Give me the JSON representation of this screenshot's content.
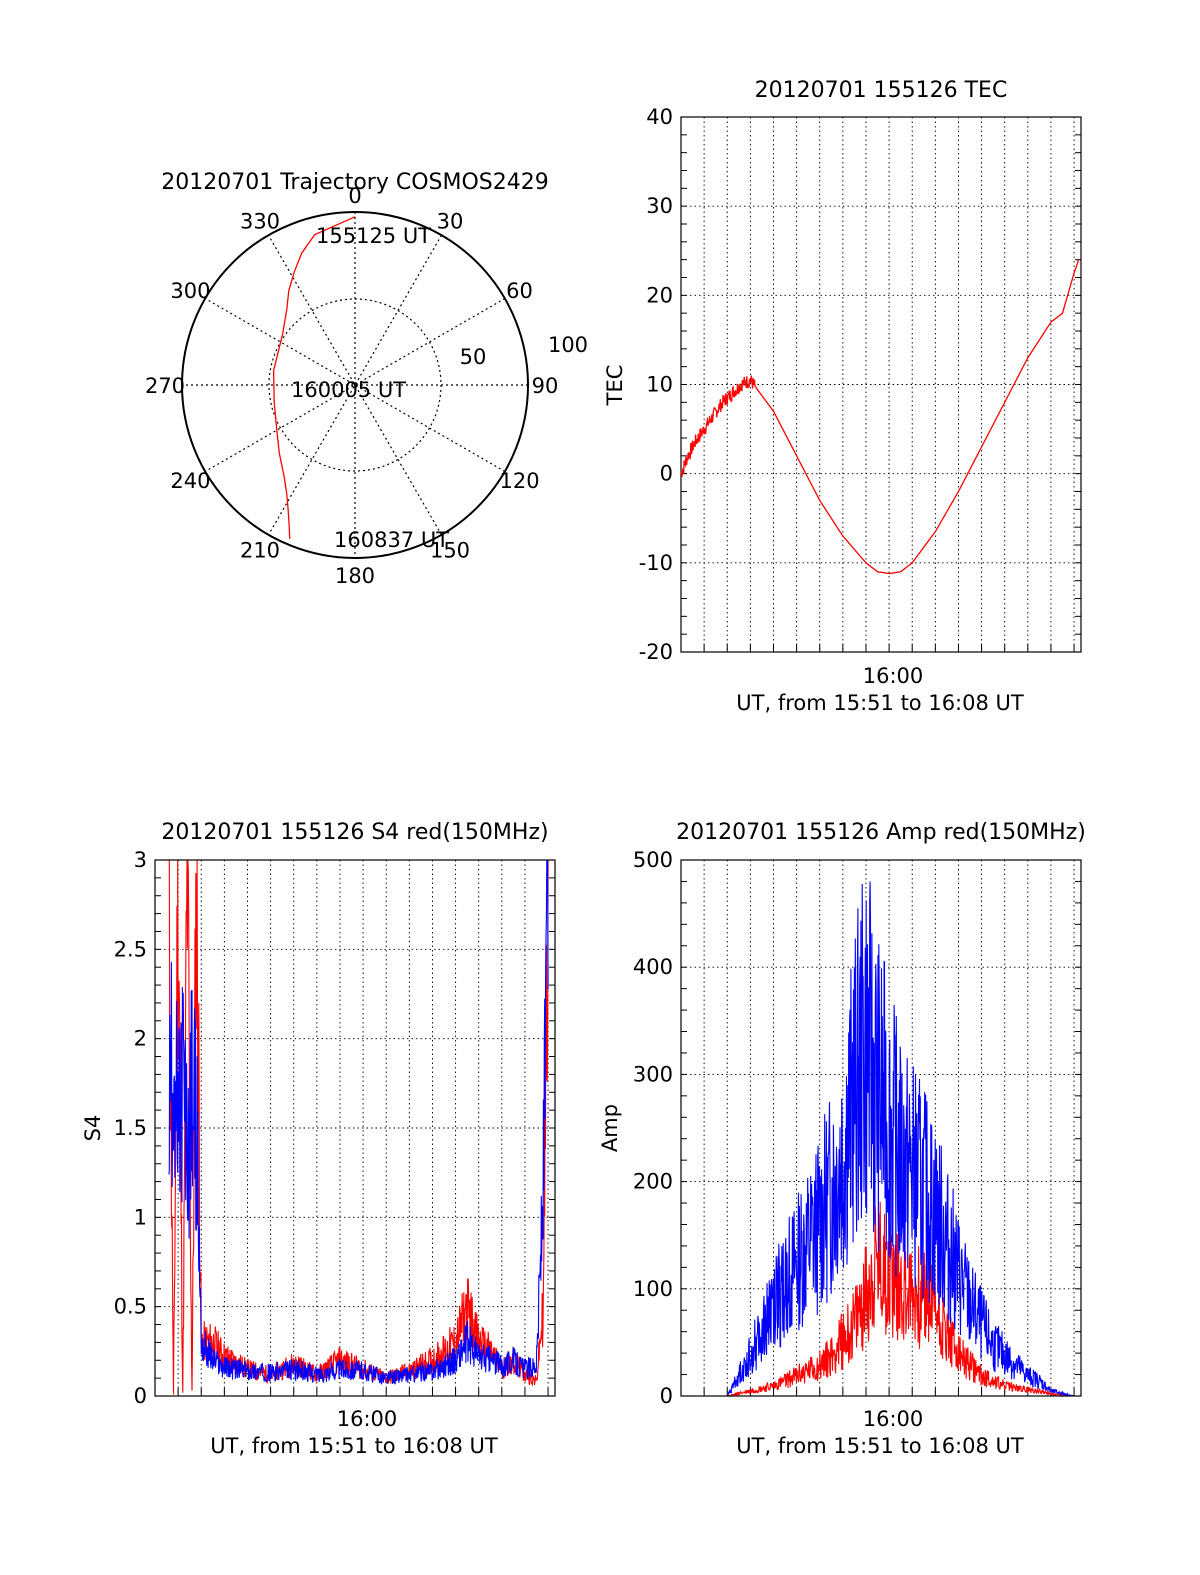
{
  "colors": {
    "red": "#ff0000",
    "blue": "#0000ff",
    "axis": "#000000",
    "grid": "#000000"
  },
  "chart_data": [
    {
      "type": "polar",
      "title": "20120701 Trajectory COSMOS2429",
      "azimuth_labels": [
        "0",
        "30",
        "60",
        "90",
        "120",
        "150",
        "180",
        "210",
        "240",
        "270",
        "300",
        "330"
      ],
      "radial_ticks": [
        "50",
        "100"
      ],
      "trajectory_az_deg": [
        0,
        345,
        338,
        332,
        325,
        318,
        305,
        280,
        258,
        240,
        228,
        218,
        212,
        208,
        205,
        203
      ],
      "trajectory_el_deg": [
        2.5,
        9,
        16,
        23,
        30,
        37,
        44,
        47,
        47,
        43,
        37,
        30,
        23,
        16,
        9,
        3
      ],
      "trajectory_az_note": "",
      "annotations": [
        {
          "text": "155125 UT",
          "az": 0,
          "el": 10
        },
        {
          "text": "160005 UT",
          "az": 260,
          "el": 82
        },
        {
          "text": "160837 UT",
          "az": 195,
          "el": 8
        }
      ],
      "series_color": "#ff0000"
    },
    {
      "type": "line",
      "title": "20120701 155126 TEC",
      "xlabel": "UT, from 15:51 to 16:08 UT",
      "ylabel": "TEC",
      "xlim_minutes": [
        15.0,
        17.0
      ],
      "xtick_major_label": "16:00",
      "ylim": [
        -20,
        40
      ],
      "yticks": [
        -20,
        -10,
        0,
        10,
        20,
        30,
        40
      ],
      "grid": true,
      "series": [
        {
          "color": "#ff0000",
          "x": [
            51.0,
            51.3,
            51.6,
            52.0,
            52.4,
            52.8,
            53.2,
            53.6,
            54.0,
            55.0,
            56.0,
            57.0,
            58.0,
            59.0,
            59.5,
            60.0,
            60.5,
            61.0,
            62.0,
            63.0,
            64.0,
            65.0,
            66.0,
            66.5,
            67.0,
            67.5,
            68.0,
            68.2
          ],
          "y": [
            0,
            2,
            3.5,
            5,
            6.5,
            8,
            9,
            10,
            10.5,
            7,
            2,
            -3,
            -7,
            -10,
            -11,
            -11.2,
            -11,
            -10,
            -6.5,
            -2,
            3,
            8,
            13,
            15,
            17,
            18,
            22.5,
            24
          ]
        }
      ]
    },
    {
      "type": "line",
      "title": "20120701 155126 S4 red(150MHz)",
      "xlabel": "UT, from 15:51 to 16:08 UT",
      "ylabel": "S4",
      "xtick_major_label": "16:00",
      "ylim": [
        0,
        3
      ],
      "yticks": [
        "0",
        "0.5",
        "1",
        "1.5",
        "2",
        "2.5",
        "3"
      ],
      "grid": true,
      "series": [
        {
          "color": "#ff0000",
          "x": [
            51.6,
            51.8,
            52.0,
            52.2,
            52.4,
            52.6,
            52.8,
            53.0,
            53.5,
            54.0,
            55.0,
            56.0,
            57.0,
            58.0,
            59.0,
            60.0,
            61.0,
            62.0,
            63.0,
            64.0,
            64.5,
            65.0,
            65.5,
            66.0,
            66.5,
            67.0,
            67.5,
            67.8,
            68.0
          ],
          "y": [
            3,
            0,
            3,
            0,
            3,
            0,
            3,
            0.3,
            0.3,
            0.22,
            0.15,
            0.12,
            0.18,
            0.12,
            0.2,
            0.15,
            0.1,
            0.14,
            0.2,
            0.3,
            0.5,
            0.3,
            0.25,
            0.15,
            0.2,
            0.12,
            0.08,
            0.5,
            3
          ]
        },
        {
          "color": "#0000ff",
          "x": [
            51.6,
            51.8,
            52.0,
            52.2,
            52.4,
            52.6,
            52.8,
            53.0,
            53.5,
            54.0,
            55.0,
            56.0,
            57.0,
            58.0,
            59.0,
            60.0,
            61.0,
            62.0,
            63.0,
            64.0,
            64.5,
            65.0,
            65.5,
            66.0,
            66.5,
            67.0,
            67.5,
            67.8,
            68.0
          ],
          "y": [
            1.6,
            2.0,
            1.4,
            1.8,
            1.3,
            1.7,
            1.5,
            0.3,
            0.2,
            0.16,
            0.14,
            0.13,
            0.15,
            0.12,
            0.15,
            0.14,
            0.1,
            0.12,
            0.14,
            0.2,
            0.3,
            0.22,
            0.2,
            0.17,
            0.2,
            0.15,
            0.18,
            1.2,
            3
          ]
        }
      ]
    },
    {
      "type": "line",
      "title": "20120701 155126 Amp red(150MHz)",
      "xlabel": "UT, from 15:51 to 16:08 UT",
      "ylabel": "Amp",
      "xtick_major_label": "16:00",
      "ylim": [
        0,
        500
      ],
      "yticks": [
        "0",
        "100",
        "200",
        "300",
        "400",
        "500"
      ],
      "grid": true,
      "series": [
        {
          "color": "#ff0000",
          "x": [
            51.0,
            52.0,
            53.0,
            54.0,
            55.0,
            56.0,
            57.0,
            57.5,
            58.0,
            58.5,
            59.0,
            59.5,
            60.0,
            60.5,
            61.0,
            61.5,
            62.0,
            62.5,
            63.0,
            63.5,
            64.0,
            64.5,
            65.0,
            65.5,
            66.0,
            66.5,
            67.0,
            68.0
          ],
          "y": [
            0,
            0,
            0,
            5,
            10,
            20,
            30,
            40,
            55,
            70,
            100,
            130,
            120,
            110,
            100,
            95,
            90,
            60,
            40,
            30,
            20,
            15,
            10,
            8,
            6,
            5,
            2,
            0
          ]
        },
        {
          "color": "#0000ff",
          "x": [
            51.0,
            52.0,
            53.0,
            54.0,
            55.0,
            56.0,
            57.0,
            57.5,
            58.0,
            58.5,
            59.0,
            59.5,
            60.0,
            60.5,
            61.0,
            61.5,
            62.0,
            62.5,
            63.0,
            63.5,
            64.0,
            64.5,
            65.0,
            65.5,
            66.0,
            66.5,
            67.0,
            68.0
          ],
          "y": [
            0,
            0,
            0,
            40,
            90,
            130,
            170,
            200,
            240,
            300,
            350,
            300,
            270,
            230,
            220,
            200,
            180,
            150,
            120,
            90,
            70,
            50,
            40,
            30,
            20,
            15,
            5,
            0
          ]
        }
      ]
    }
  ]
}
